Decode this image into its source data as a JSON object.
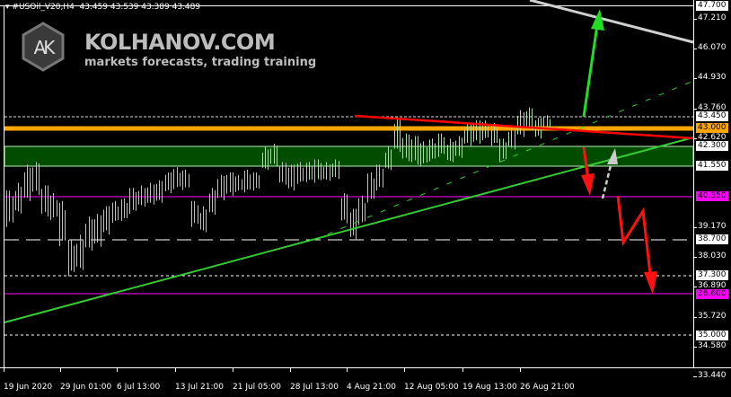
{
  "header": {
    "symbol": "#USOil_V20,H4",
    "ohlc": "43.459 43.539 43.389 43.489"
  },
  "watermark": {
    "logo_text": "AK",
    "brand": "KOLHANOV.COM",
    "tagline": "markets forecasts, trading training"
  },
  "colors": {
    "background": "#000000",
    "bars": "#c0c0c0",
    "zone": "#004d00",
    "support_level": "#ffa500",
    "trendline": "#33cc33",
    "resistance": "#ff0000",
    "target": "#ff00ff"
  },
  "chart_data": {
    "type": "bar",
    "symbol": "#USOil_V20",
    "timeframe": "H4",
    "ylim": [
      33.44,
      47.7
    ],
    "y_ticks": [
      "47.210",
      "46.070",
      "44.930",
      "43.760",
      "42.620",
      "39.170",
      "38.030",
      "36.890",
      "35.720",
      "34.580",
      "33.440"
    ],
    "x_ticks": [
      "19 Jun 2020",
      "29 Jun 01:00",
      "6 Jul 13:00",
      "13 Jul 21:00",
      "21 Jul 05:00",
      "28 Jul 13:00",
      "4 Aug 21:00",
      "12 Aug 05:00",
      "19 Aug 13:00",
      "26 Aug 21:00"
    ],
    "level_labels": [
      {
        "value": "47.700",
        "style": "box"
      },
      {
        "value": "43.450",
        "style": "box"
      },
      {
        "value": "43.000",
        "style": "orange"
      },
      {
        "value": "42.300",
        "style": "box"
      },
      {
        "value": "41.550",
        "style": "box"
      },
      {
        "value": "40.350",
        "style": "magenta"
      },
      {
        "value": "38.700",
        "style": "box"
      },
      {
        "value": "37.300",
        "style": "box"
      },
      {
        "value": "36.600",
        "style": "magenta"
      },
      {
        "value": "35.000",
        "style": "box"
      }
    ],
    "zone": [
      41.55,
      42.3
    ],
    "bars_low_high_approx": [
      [
        39.2,
        40.6
      ],
      [
        39.6,
        40.9
      ],
      [
        40.1,
        41.6
      ],
      [
        40.4,
        41.7
      ],
      [
        39.6,
        40.8
      ],
      [
        39.4,
        40.5
      ],
      [
        38.4,
        40.2
      ],
      [
        37.3,
        38.7
      ],
      [
        37.4,
        38.9
      ],
      [
        38.2,
        39.6
      ],
      [
        38.4,
        39.7
      ],
      [
        38.9,
        40.0
      ],
      [
        39.3,
        40.2
      ],
      [
        39.4,
        40.3
      ],
      [
        39.7,
        40.7
      ],
      [
        39.9,
        40.8
      ],
      [
        40.0,
        40.9
      ],
      [
        40.1,
        41.0
      ],
      [
        40.5,
        41.3
      ],
      [
        40.6,
        41.5
      ],
      [
        40.6,
        41.4
      ],
      [
        39.2,
        40.2
      ],
      [
        38.9,
        40.0
      ],
      [
        39.6,
        40.7
      ],
      [
        40.2,
        41.2
      ],
      [
        40.4,
        41.3
      ],
      [
        40.5,
        41.2
      ],
      [
        40.5,
        41.4
      ],
      [
        40.6,
        41.3
      ],
      [
        41.3,
        42.3
      ],
      [
        41.5,
        42.4
      ],
      [
        40.8,
        41.7
      ],
      [
        40.6,
        41.6
      ],
      [
        40.8,
        41.7
      ],
      [
        40.9,
        41.7
      ],
      [
        40.9,
        41.8
      ],
      [
        40.9,
        41.7
      ],
      [
        41.0,
        41.8
      ],
      [
        39.3,
        40.5
      ],
      [
        38.7,
        39.9
      ],
      [
        39.2,
        40.4
      ],
      [
        40.1,
        41.3
      ],
      [
        40.6,
        41.6
      ],
      [
        41.3,
        42.3
      ],
      [
        42.0,
        43.45
      ],
      [
        41.7,
        42.8
      ],
      [
        41.6,
        42.7
      ],
      [
        41.5,
        42.5
      ],
      [
        41.7,
        42.6
      ],
      [
        41.9,
        42.8
      ],
      [
        41.6,
        42.6
      ],
      [
        41.8,
        42.7
      ],
      [
        42.3,
        43.2
      ],
      [
        42.4,
        43.3
      ],
      [
        42.5,
        43.3
      ],
      [
        42.3,
        43.2
      ],
      [
        41.7,
        42.6
      ],
      [
        42.1,
        43.1
      ],
      [
        42.6,
        43.7
      ],
      [
        42.9,
        43.8
      ],
      [
        42.6,
        43.4
      ],
      [
        42.9,
        43.5
      ]
    ],
    "annotations": [
      "horizontal levels",
      "support zone",
      "rising trendlines",
      "falling resistance line",
      "forecast arrows"
    ]
  }
}
